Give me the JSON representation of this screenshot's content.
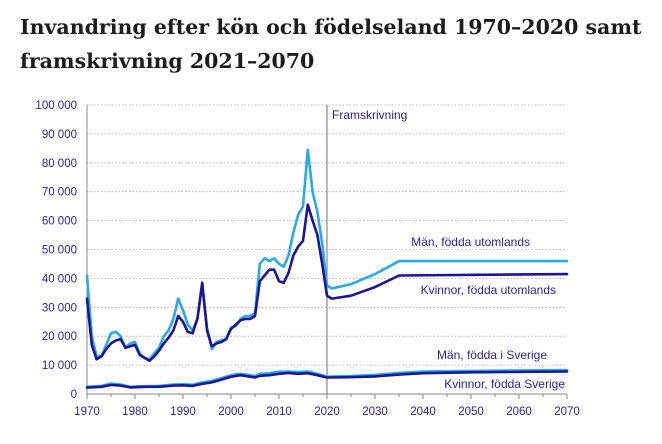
{
  "title": "Invandring efter kön och födelseland 1970–2020 samt framskrivning 2021–2070",
  "chart_data": {
    "type": "line",
    "title": "Invandring efter kön och födelseland 1970–2020 samt framskrivning 2021–2070",
    "xlabel": "",
    "ylabel": "",
    "xlim": [
      1970,
      2070
    ],
    "ylim": [
      0,
      100000
    ],
    "x_ticks": [
      "1970",
      "1980",
      "1990",
      "2000",
      "2010",
      "2020",
      "2030",
      "2040",
      "2050",
      "2060",
      "2070"
    ],
    "y_ticks": [
      "0",
      "10 000",
      "20 000",
      "30 000",
      "40 000",
      "50 000",
      "60 000",
      "70 000",
      "80 000",
      "90 000",
      "100 000"
    ],
    "projection_year": 2020,
    "projection_label": "Framskrivning",
    "series": [
      {
        "name": "Män, födda utomlands",
        "color": "#29abe2",
        "points": [
          [
            1970,
            41000
          ],
          [
            1971,
            20000
          ],
          [
            1972,
            13000
          ],
          [
            1973,
            13000
          ],
          [
            1974,
            17000
          ],
          [
            1975,
            21000
          ],
          [
            1976,
            21500
          ],
          [
            1977,
            20000
          ],
          [
            1978,
            16000
          ],
          [
            1979,
            17500
          ],
          [
            1980,
            18000
          ],
          [
            1981,
            14000
          ],
          [
            1982,
            12500
          ],
          [
            1983,
            12000
          ],
          [
            1984,
            14000
          ],
          [
            1985,
            16000
          ],
          [
            1986,
            20000
          ],
          [
            1987,
            22000
          ],
          [
            1988,
            26000
          ],
          [
            1989,
            33000
          ],
          [
            1990,
            29000
          ],
          [
            1991,
            24000
          ],
          [
            1992,
            22000
          ],
          [
            1993,
            26000
          ],
          [
            1994,
            38000
          ],
          [
            1995,
            23000
          ],
          [
            1996,
            15500
          ],
          [
            1997,
            18000
          ],
          [
            1998,
            18500
          ],
          [
            1999,
            19000
          ],
          [
            2000,
            23000
          ],
          [
            2001,
            23500
          ],
          [
            2002,
            26000
          ],
          [
            2003,
            27000
          ],
          [
            2004,
            27000
          ],
          [
            2005,
            28000
          ],
          [
            2006,
            45000
          ],
          [
            2007,
            47000
          ],
          [
            2008,
            46000
          ],
          [
            2009,
            47000
          ],
          [
            2010,
            45000
          ],
          [
            2011,
            44000
          ],
          [
            2012,
            48000
          ],
          [
            2013,
            56000
          ],
          [
            2014,
            62000
          ],
          [
            2015,
            65000
          ],
          [
            2016,
            84500
          ],
          [
            2017,
            70000
          ],
          [
            2018,
            63000
          ],
          [
            2019,
            52000
          ],
          [
            2020,
            37500
          ],
          [
            2021,
            36500
          ],
          [
            2025,
            38000
          ],
          [
            2030,
            41500
          ],
          [
            2035,
            46000
          ],
          [
            2070,
            46000
          ]
        ]
      },
      {
        "name": "Kvinnor, födda utomlands",
        "color": "#1e1496",
        "points": [
          [
            1970,
            33000
          ],
          [
            1971,
            17000
          ],
          [
            1972,
            12000
          ],
          [
            1973,
            13000
          ],
          [
            1974,
            15500
          ],
          [
            1975,
            17500
          ],
          [
            1976,
            18500
          ],
          [
            1977,
            19000
          ],
          [
            1978,
            16000
          ],
          [
            1979,
            16500
          ],
          [
            1980,
            17000
          ],
          [
            1981,
            13500
          ],
          [
            1982,
            12500
          ],
          [
            1983,
            11500
          ],
          [
            1984,
            13000
          ],
          [
            1985,
            15000
          ],
          [
            1986,
            17500
          ],
          [
            1987,
            19500
          ],
          [
            1988,
            22000
          ],
          [
            1989,
            27000
          ],
          [
            1990,
            25000
          ],
          [
            1991,
            21500
          ],
          [
            1992,
            21000
          ],
          [
            1993,
            26000
          ],
          [
            1994,
            38500
          ],
          [
            1995,
            22000
          ],
          [
            1996,
            16500
          ],
          [
            1997,
            17500
          ],
          [
            1998,
            18000
          ],
          [
            1999,
            19000
          ],
          [
            2000,
            22500
          ],
          [
            2001,
            24000
          ],
          [
            2002,
            25500
          ],
          [
            2003,
            26000
          ],
          [
            2004,
            26000
          ],
          [
            2005,
            27000
          ],
          [
            2006,
            39000
          ],
          [
            2007,
            41000
          ],
          [
            2008,
            43000
          ],
          [
            2009,
            43000
          ],
          [
            2010,
            39000
          ],
          [
            2011,
            38500
          ],
          [
            2012,
            42000
          ],
          [
            2013,
            48000
          ],
          [
            2014,
            51000
          ],
          [
            2015,
            53000
          ],
          [
            2016,
            65500
          ],
          [
            2017,
            60000
          ],
          [
            2018,
            55000
          ],
          [
            2019,
            45000
          ],
          [
            2020,
            34000
          ],
          [
            2021,
            33000
          ],
          [
            2025,
            34000
          ],
          [
            2030,
            37000
          ],
          [
            2035,
            41000
          ],
          [
            2070,
            41500
          ]
        ]
      },
      {
        "name": "Män, födda i Sverige",
        "color": "#29abe2",
        "points": [
          [
            1970,
            2500
          ],
          [
            1973,
            2800
          ],
          [
            1975,
            3600
          ],
          [
            1977,
            3300
          ],
          [
            1979,
            2500
          ],
          [
            1982,
            2700
          ],
          [
            1985,
            2800
          ],
          [
            1988,
            3300
          ],
          [
            1990,
            3400
          ],
          [
            1992,
            3200
          ],
          [
            1994,
            4000
          ],
          [
            1996,
            4500
          ],
          [
            1998,
            5500
          ],
          [
            2000,
            6500
          ],
          [
            2002,
            7000
          ],
          [
            2004,
            6500
          ],
          [
            2005,
            6200
          ],
          [
            2006,
            7000
          ],
          [
            2008,
            7200
          ],
          [
            2010,
            7700
          ],
          [
            2012,
            7800
          ],
          [
            2014,
            7600
          ],
          [
            2016,
            7800
          ],
          [
            2018,
            7000
          ],
          [
            2020,
            6000
          ],
          [
            2025,
            6200
          ],
          [
            2030,
            6600
          ],
          [
            2035,
            7300
          ],
          [
            2040,
            7800
          ],
          [
            2050,
            8000
          ],
          [
            2070,
            8300
          ]
        ]
      },
      {
        "name": "Kvinnor, födda Sverige",
        "color": "#1e1496",
        "points": [
          [
            1970,
            2200
          ],
          [
            1973,
            2500
          ],
          [
            1975,
            3100
          ],
          [
            1977,
            2900
          ],
          [
            1979,
            2300
          ],
          [
            1982,
            2500
          ],
          [
            1985,
            2500
          ],
          [
            1988,
            2900
          ],
          [
            1990,
            3000
          ],
          [
            1992,
            2800
          ],
          [
            1994,
            3500
          ],
          [
            1996,
            4000
          ],
          [
            1998,
            5000
          ],
          [
            2000,
            6000
          ],
          [
            2002,
            6500
          ],
          [
            2004,
            6000
          ],
          [
            2005,
            5700
          ],
          [
            2006,
            6300
          ],
          [
            2008,
            6500
          ],
          [
            2010,
            7000
          ],
          [
            2012,
            7300
          ],
          [
            2014,
            7000
          ],
          [
            2016,
            7200
          ],
          [
            2018,
            6500
          ],
          [
            2020,
            5700
          ],
          [
            2025,
            5800
          ],
          [
            2030,
            6100
          ],
          [
            2035,
            6700
          ],
          [
            2040,
            7200
          ],
          [
            2050,
            7500
          ],
          [
            2070,
            7800
          ]
        ]
      }
    ]
  }
}
